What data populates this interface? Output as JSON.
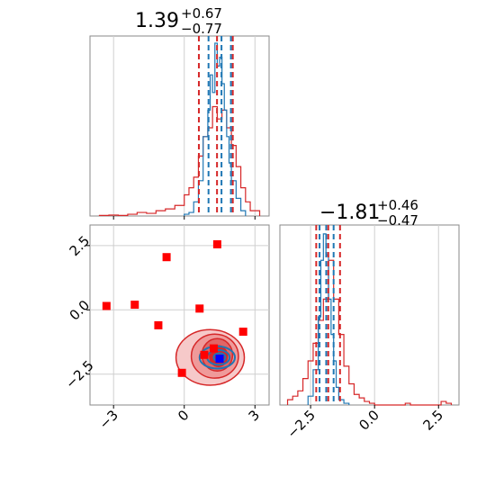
{
  "chart_data": [
    {
      "type": "histogram",
      "panel": "top-left",
      "title": {
        "value": "1.39",
        "plus": "+0.67",
        "minus": "−0.77"
      },
      "xlim": [
        -4.0,
        3.6
      ],
      "grid": true,
      "xticks": [
        -3,
        0,
        3
      ],
      "series": [
        {
          "color": "#d62728",
          "bin_edges": [
            -3.6,
            -3.2,
            -2.8,
            -2.4,
            -2.0,
            -1.6,
            -1.2,
            -0.8,
            -0.4,
            0.0,
            0.2,
            0.4,
            0.6,
            0.8,
            1.0,
            1.2,
            1.4,
            1.6,
            1.8,
            2.0,
            2.2,
            2.4,
            2.6,
            2.8,
            3.2
          ],
          "heights": [
            0.003,
            0.005,
            0.003,
            0.01,
            0.02,
            0.015,
            0.03,
            0.04,
            0.06,
            0.12,
            0.16,
            0.22,
            0.34,
            0.45,
            0.5,
            0.62,
            0.55,
            0.6,
            0.5,
            0.4,
            0.28,
            0.16,
            0.08,
            0.03
          ],
          "quantile_lines": [
            0.62,
            1.39,
            2.06
          ]
        },
        {
          "color": "#1f77b4",
          "bin_edges": [
            0.0,
            0.2,
            0.4,
            0.6,
            0.8,
            1.0,
            1.1,
            1.2,
            1.3,
            1.4,
            1.5,
            1.6,
            1.7,
            1.8,
            1.9,
            2.0,
            2.2,
            2.4,
            2.6
          ],
          "heights": [
            0.01,
            0.02,
            0.08,
            0.2,
            0.45,
            0.6,
            0.8,
            0.7,
            0.98,
            0.85,
            0.9,
            0.75,
            0.6,
            0.45,
            0.3,
            0.2,
            0.1,
            0.03
          ],
          "quantile_lines": [
            1.03,
            1.58,
            1.98
          ]
        }
      ]
    },
    {
      "type": "scatter+contour",
      "panel": "bottom-left",
      "xlim": [
        -4.0,
        3.6
      ],
      "ylim": [
        -3.7,
        3.3
      ],
      "grid": true,
      "xticks": [
        -3,
        0,
        3
      ],
      "yticks": [
        2.5,
        0.0,
        -2.5
      ],
      "xticklabels": [
        "−3",
        "0",
        "3"
      ],
      "yticklabels": [
        "2.5",
        "0.0",
        "−2.5"
      ],
      "red_points": [
        [
          -3.3,
          0.15
        ],
        [
          -2.1,
          0.2
        ],
        [
          -0.75,
          2.05
        ],
        [
          -1.1,
          -0.6
        ],
        [
          0.65,
          0.05
        ],
        [
          1.4,
          2.55
        ],
        [
          2.5,
          -0.85
        ],
        [
          0.85,
          -1.75
        ],
        [
          -0.1,
          -2.45
        ],
        [
          1.25,
          -1.5
        ]
      ],
      "blue_points": [
        [
          1.5,
          -1.9
        ]
      ],
      "red_contours": [
        {
          "center": [
            1.1,
            -1.85
          ],
          "rx": 2.9,
          "ry": 1.2,
          "fill": "#f6c9c9"
        },
        {
          "center": [
            1.3,
            -1.8
          ],
          "rx": 2.0,
          "ry": 0.95,
          "fill": "#ef9a9a"
        },
        {
          "center": [
            1.4,
            -1.75
          ],
          "rx": 1.3,
          "ry": 0.7,
          "fill": "#e06666"
        },
        {
          "center": [
            1.45,
            -1.8
          ],
          "rx": 0.75,
          "ry": 0.45,
          "fill": "#d62728"
        }
      ],
      "blue_contours": [
        {
          "center": [
            1.4,
            -1.85
          ],
          "rx": 1.5,
          "ry": 0.48
        },
        {
          "center": [
            1.45,
            -1.85
          ],
          "rx": 0.95,
          "ry": 0.32
        },
        {
          "center": [
            1.5,
            -1.85
          ],
          "rx": 0.5,
          "ry": 0.18
        }
      ]
    },
    {
      "type": "histogram",
      "panel": "bottom-right",
      "title": {
        "value": "−1.81",
        "plus": "+0.46",
        "minus": "−0.47"
      },
      "xlim": [
        -3.7,
        3.3
      ],
      "grid": true,
      "xticks": [
        -2.5,
        0.0,
        2.5
      ],
      "xticklabels": [
        "−2.5",
        "0.0",
        "2.5"
      ],
      "series": [
        {
          "color": "#d62728",
          "bin_edges": [
            -3.4,
            -3.2,
            -3.0,
            -2.8,
            -2.6,
            -2.4,
            -2.2,
            -2.0,
            -1.8,
            -1.6,
            -1.4,
            -1.2,
            -1.0,
            -0.8,
            -0.6,
            -0.4,
            -0.2,
            0.0,
            1.2,
            1.4,
            2.6,
            2.8,
            3.0
          ],
          "heights": [
            0.03,
            0.05,
            0.08,
            0.15,
            0.25,
            0.35,
            0.48,
            0.6,
            0.82,
            0.6,
            0.4,
            0.22,
            0.12,
            0.06,
            0.04,
            0.02,
            0.01,
            0.0,
            0.01,
            0.0,
            0.02,
            0.01
          ],
          "quantile_lines": [
            -2.28,
            -1.81,
            -1.35
          ]
        },
        {
          "color": "#1f77b4",
          "bin_edges": [
            -2.6,
            -2.4,
            -2.2,
            -2.1,
            -2.0,
            -1.9,
            -1.8,
            -1.7,
            -1.6,
            -1.5,
            -1.4,
            -1.2,
            -1.0
          ],
          "heights": [
            0.05,
            0.2,
            0.5,
            0.82,
            0.97,
            0.85,
            0.6,
            0.4,
            0.25,
            0.1,
            0.03,
            0.01
          ],
          "quantile_lines": [
            -2.15,
            -1.89,
            -1.6
          ]
        }
      ]
    }
  ]
}
